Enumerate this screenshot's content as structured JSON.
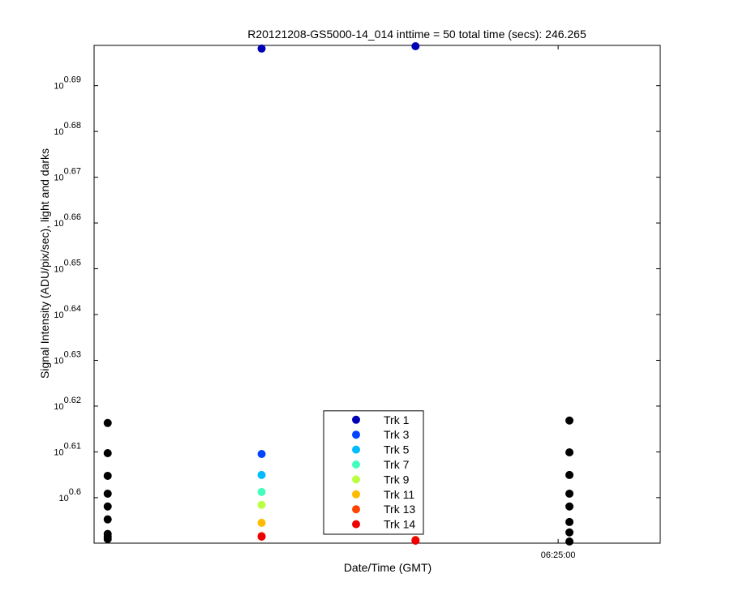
{
  "chart_data": {
    "type": "scatter",
    "title": "R20121208-GS5000-14_014 inttime = 50 total time (secs): 246.265",
    "x_label": "Date/Time (GMT)",
    "y_label": "Signal Intensity (ADU/pix/sec), light and darks",
    "y_log_scale": true,
    "xlim": [
      22919.1,
      23139.8
    ],
    "xticks": [
      {
        "value": 23100,
        "label": "06:25:00"
      }
    ],
    "ylim": [
      3.891,
      4.998
    ],
    "yticks": [
      {
        "value": 3.98107,
        "label": "10^0.6"
      },
      {
        "value": 4.0738,
        "label": "10^0.61"
      },
      {
        "value": 4.16869,
        "label": "10^0.62"
      },
      {
        "value": 4.2658,
        "label": "10^0.63"
      },
      {
        "value": 4.36516,
        "label": "10^0.64"
      },
      {
        "value": 4.46684,
        "label": "10^0.65"
      },
      {
        "value": 4.57088,
        "label": "10^0.66"
      },
      {
        "value": 4.67735,
        "label": "10^0.67"
      },
      {
        "value": 4.7863,
        "label": "10^0.68"
      },
      {
        "value": 4.89779,
        "label": "10^0.69"
      }
    ],
    "x": [
      22924.4,
      22984.4,
      23044.4,
      23104.4
    ],
    "legend_position": "bottom",
    "series": [
      {
        "name": "Trk 1",
        "color": "#0000b4",
        "values": [
          null,
          4.99,
          4.996,
          null
        ]
      },
      {
        "name": "Trk 3",
        "color": "#0044ff",
        "values": [
          null,
          4.0695,
          null,
          null
        ]
      },
      {
        "name": "Trk 5",
        "color": "#00bbff",
        "values": [
          null,
          4.0267,
          null,
          null
        ]
      },
      {
        "name": "Trk 7",
        "color": "#44ffbb",
        "values": [
          null,
          3.9925,
          null,
          null
        ]
      },
      {
        "name": "Trk 9",
        "color": "#bbff44",
        "values": [
          null,
          3.9666,
          null,
          null
        ]
      },
      {
        "name": "Trk 11",
        "color": "#ffbb00",
        "values": [
          null,
          3.931,
          null,
          null
        ]
      },
      {
        "name": "Trk 13",
        "color": "#ff4400",
        "values": [
          null,
          3.905,
          3.8973,
          null
        ]
      },
      {
        "name": "Trk 14",
        "color": "#ee0000",
        "values": [
          null,
          3.9037,
          3.8958,
          null
        ]
      },
      {
        "color": "#000000",
        "x": [
          22924.4,
          22924.4,
          22924.4,
          22924.4,
          22924.4,
          22924.4,
          22924.4,
          22924.4,
          22924.4,
          23104.4,
          23104.4,
          23104.4,
          23104.4,
          23104.4,
          23104.4,
          23104.4,
          23104.4
        ],
        "values": [
          4.1334,
          4.0712,
          4.025,
          3.9891,
          3.9635,
          3.9378,
          3.909,
          3.9037,
          3.8989,
          4.1385,
          4.0728,
          4.0267,
          3.9891,
          3.9635,
          3.9326,
          3.9121,
          3.8942
        ]
      }
    ]
  }
}
